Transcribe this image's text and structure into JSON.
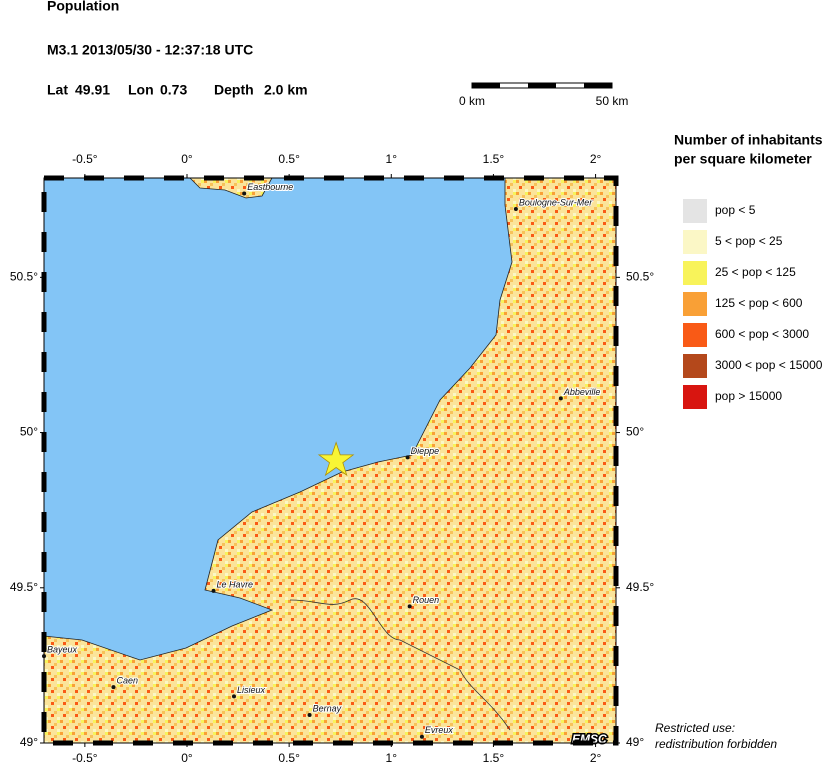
{
  "header": {
    "title": "Population",
    "event": "M3.1  2013/05/30 - 12:37:18 UTC",
    "lat_label": "Lat",
    "lat": 49.91,
    "lon_label": "Lon",
    "lon": 0.73,
    "depth_label": "Depth",
    "depth": "2.0 km"
  },
  "scale_bar": {
    "start": "0 km",
    "end": "50 km"
  },
  "map": {
    "lonlim": [
      -0.7,
      2.1
    ],
    "latlim": [
      49,
      50.82
    ],
    "lonticks": [
      {
        "value": -0.5,
        "label": "-0.5°"
      },
      {
        "value": 0,
        "label": "0°"
      },
      {
        "value": 0.5,
        "label": "0.5°"
      },
      {
        "value": 1,
        "label": "1°"
      },
      {
        "value": 1.5,
        "label": "1.5°"
      },
      {
        "value": 2,
        "label": "2°"
      }
    ],
    "latticks": [
      {
        "value": 50.5,
        "label": "50.5°"
      },
      {
        "value": 50,
        "label": "50°"
      },
      {
        "value": 49.5,
        "label": "49.5°"
      },
      {
        "value": 49,
        "label": "49°"
      }
    ],
    "cities": [
      {
        "name": "Eastbourne",
        "lon": 0.28,
        "lat": 50.77
      },
      {
        "name": "Boulogne-Sur-Mer",
        "lon": 1.61,
        "lat": 50.72
      },
      {
        "name": "Abbeville",
        "lon": 1.83,
        "lat": 50.11
      },
      {
        "name": "Dieppe",
        "lon": 1.08,
        "lat": 49.92
      },
      {
        "name": "Le Havre",
        "lon": 0.13,
        "lat": 49.49
      },
      {
        "name": "Rouen",
        "lon": 1.09,
        "lat": 49.44
      },
      {
        "name": "Bayeux",
        "lon": -0.7,
        "lat": 49.28
      },
      {
        "name": "Caen",
        "lon": -0.36,
        "lat": 49.18
      },
      {
        "name": "Lisieux",
        "lon": 0.23,
        "lat": 49.15
      },
      {
        "name": "Bernay",
        "lon": 0.6,
        "lat": 49.09
      },
      {
        "name": "Evreux",
        "lon": 1.15,
        "lat": 49.02
      }
    ],
    "credit": "EMSC"
  },
  "legend": {
    "title": [
      "Number of inhabitants",
      "per square kilometer"
    ],
    "items": [
      {
        "label": "pop < 5",
        "color": "#e4e4e4"
      },
      {
        "label": "5 < pop < 25",
        "color": "#fbf7c6"
      },
      {
        "label": "25 < pop < 125",
        "color": "#f8f35a"
      },
      {
        "label": "125 < pop < 600",
        "color": "#f9a036"
      },
      {
        "label": "600 < pop < 3000",
        "color": "#f95a16"
      },
      {
        "label": "3000 < pop < 15000",
        "color": "#b4481b"
      },
      {
        "label": "pop > 15000",
        "color": "#d81510"
      }
    ]
  },
  "notice": [
    "Restricted use:",
    "redistribution forbidden"
  ]
}
